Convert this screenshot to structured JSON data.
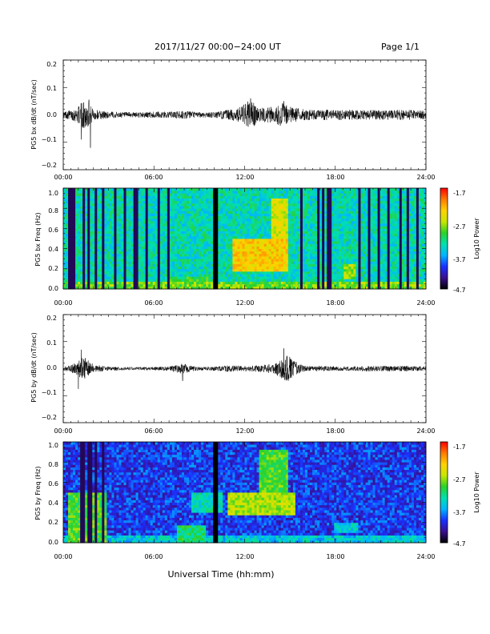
{
  "header": {
    "date_range": "2017/11/27  00:00−24:00 UT",
    "page": "Page 1/1"
  },
  "xlabel": "Universal Time (hh:mm)",
  "time_ticks": [
    "00:00",
    "06:00",
    "12:00",
    "18:00",
    "24:00"
  ],
  "colorbar": {
    "label": "Log10 Power",
    "ticks": [
      "-1.7",
      "-2.7",
      "-3.7",
      "-4.7"
    ],
    "stops": [
      "#000000",
      "#3a0f8f",
      "#1a30ff",
      "#00b4ff",
      "#00e0b0",
      "#2bd12b",
      "#c8e600",
      "#ffd200",
      "#ff7a00",
      "#ff0000"
    ]
  },
  "chart_data": [
    {
      "type": "line",
      "ylabel": "PG5 bx dB/dt (nT/sec)",
      "ylim": [
        -0.2,
        0.2
      ],
      "yticks": [
        "0.2",
        "0.1",
        "0.0",
        "−0.1",
        "−0.2"
      ],
      "xlim_hours": [
        0,
        24
      ],
      "envelope": {
        "hour": [
          0,
          0.5,
          1,
          1.2,
          1.5,
          1.8,
          2,
          3,
          4,
          5,
          6,
          7,
          8,
          9,
          10,
          11,
          11.5,
          12,
          12.3,
          13,
          14,
          14.5,
          15,
          16,
          17,
          18,
          19,
          20,
          21,
          22,
          23,
          24
        ],
        "amplitude": [
          0.012,
          0.018,
          0.03,
          0.045,
          0.055,
          0.035,
          0.02,
          0.012,
          0.01,
          0.01,
          0.012,
          0.012,
          0.015,
          0.01,
          0.01,
          0.02,
          0.025,
          0.04,
          0.06,
          0.025,
          0.03,
          0.045,
          0.03,
          0.02,
          0.018,
          0.02,
          0.018,
          0.018,
          0.018,
          0.018,
          0.018,
          0.015
        ]
      },
      "spikes": [
        [
          1.7,
          0.055
        ],
        [
          1.8,
          -0.12
        ],
        [
          1.2,
          -0.09
        ],
        [
          12.4,
          0.06
        ],
        [
          14.6,
          0.05
        ]
      ]
    },
    {
      "type": "heatmap",
      "ylabel": "PG5 bx Freq (Hz)",
      "ylim": [
        0.0,
        1.0
      ],
      "yticks": [
        "1.0",
        "0.8",
        "0.6",
        "0.4",
        "0.2",
        "0.0"
      ],
      "xlim_hours": [
        0,
        24
      ],
      "zlim_log10": [
        -4.7,
        -1.7
      ],
      "background_log10": -3.4,
      "gaps_hours": [
        [
          9.85,
          10.0
        ]
      ],
      "stripes_hours": [
        0.35,
        0.65,
        1.3,
        1.65,
        2.1,
        2.6,
        3.4,
        4.1,
        4.8,
        5.5,
        6.3,
        7.0,
        15.7,
        16.9,
        17.2,
        17.6,
        19.6,
        20.3,
        20.9,
        21.5,
        22.3,
        22.8,
        23.5
      ],
      "enhancements": [
        {
          "hours": [
            11.2,
            14.8
          ],
          "freq_hz": [
            0.18,
            0.5
          ],
          "log10": -2.4
        },
        {
          "hours": [
            13.8,
            14.9
          ],
          "freq_hz": [
            0.45,
            0.9
          ],
          "log10": -2.6
        },
        {
          "hours": [
            18.6,
            19.4
          ],
          "freq_hz": [
            0.1,
            0.25
          ],
          "log10": -2.8
        },
        {
          "hours": [
            7.0,
            9.8
          ],
          "freq_hz": [
            0.0,
            0.12
          ],
          "log10": -3.1
        }
      ]
    },
    {
      "type": "line",
      "ylabel": "PG5 by dB/dt (nT/sec)",
      "ylim": [
        -0.2,
        0.2
      ],
      "yticks": [
        "0.2",
        "0.1",
        "0.0",
        "−0.1",
        "−0.2"
      ],
      "xlim_hours": [
        0,
        24
      ],
      "envelope": {
        "hour": [
          0,
          0.5,
          1,
          1.3,
          1.7,
          2,
          3,
          4,
          5,
          6,
          7,
          7.9,
          8.5,
          9,
          10,
          11,
          12,
          13,
          14,
          14.5,
          14.8,
          15.5,
          16,
          17,
          18,
          19,
          20,
          21,
          22,
          23,
          24
        ],
        "amplitude": [
          0.008,
          0.012,
          0.03,
          0.045,
          0.03,
          0.015,
          0.008,
          0.006,
          0.006,
          0.006,
          0.008,
          0.02,
          0.01,
          0.006,
          0.008,
          0.012,
          0.01,
          0.012,
          0.02,
          0.04,
          0.06,
          0.02,
          0.01,
          0.01,
          0.008,
          0.008,
          0.01,
          0.01,
          0.01,
          0.01,
          0.008
        ]
      },
      "spikes": [
        [
          1.2,
          0.07
        ],
        [
          1.0,
          -0.075
        ],
        [
          7.9,
          -0.045
        ],
        [
          14.6,
          0.075
        ]
      ]
    },
    {
      "type": "heatmap",
      "ylabel": "PG5 by Freq (Hz)",
      "ylim": [
        0.0,
        1.0
      ],
      "yticks": [
        "1.0",
        "0.8",
        "0.6",
        "0.4",
        "0.2",
        "0.0"
      ],
      "xlim_hours": [
        0,
        24
      ],
      "zlim_log10": [
        -4.7,
        -1.7
      ],
      "background_log10": -4.05,
      "gaps_hours": [
        [
          9.85,
          10.0
        ]
      ],
      "stripes_hours": [
        1.2,
        1.35,
        1.75,
        2.2,
        2.7
      ],
      "enhancements": [
        {
          "hours": [
            10.9,
            15.3
          ],
          "freq_hz": [
            0.28,
            0.5
          ],
          "log10": -2.75
        },
        {
          "hours": [
            13.0,
            14.8
          ],
          "freq_hz": [
            0.5,
            0.92
          ],
          "log10": -3.0
        },
        {
          "hours": [
            7.5,
            9.5
          ],
          "freq_hz": [
            0.0,
            0.18
          ],
          "log10": -3.2
        },
        {
          "hours": [
            0.3,
            2.8
          ],
          "freq_hz": [
            0.0,
            0.5
          ],
          "log10": -3.0
        },
        {
          "hours": [
            8.5,
            10.5
          ],
          "freq_hz": [
            0.3,
            0.5
          ],
          "log10": -3.4
        },
        {
          "hours": [
            18.0,
            19.5
          ],
          "freq_hz": [
            0.1,
            0.2
          ],
          "log10": -3.5
        }
      ]
    }
  ]
}
